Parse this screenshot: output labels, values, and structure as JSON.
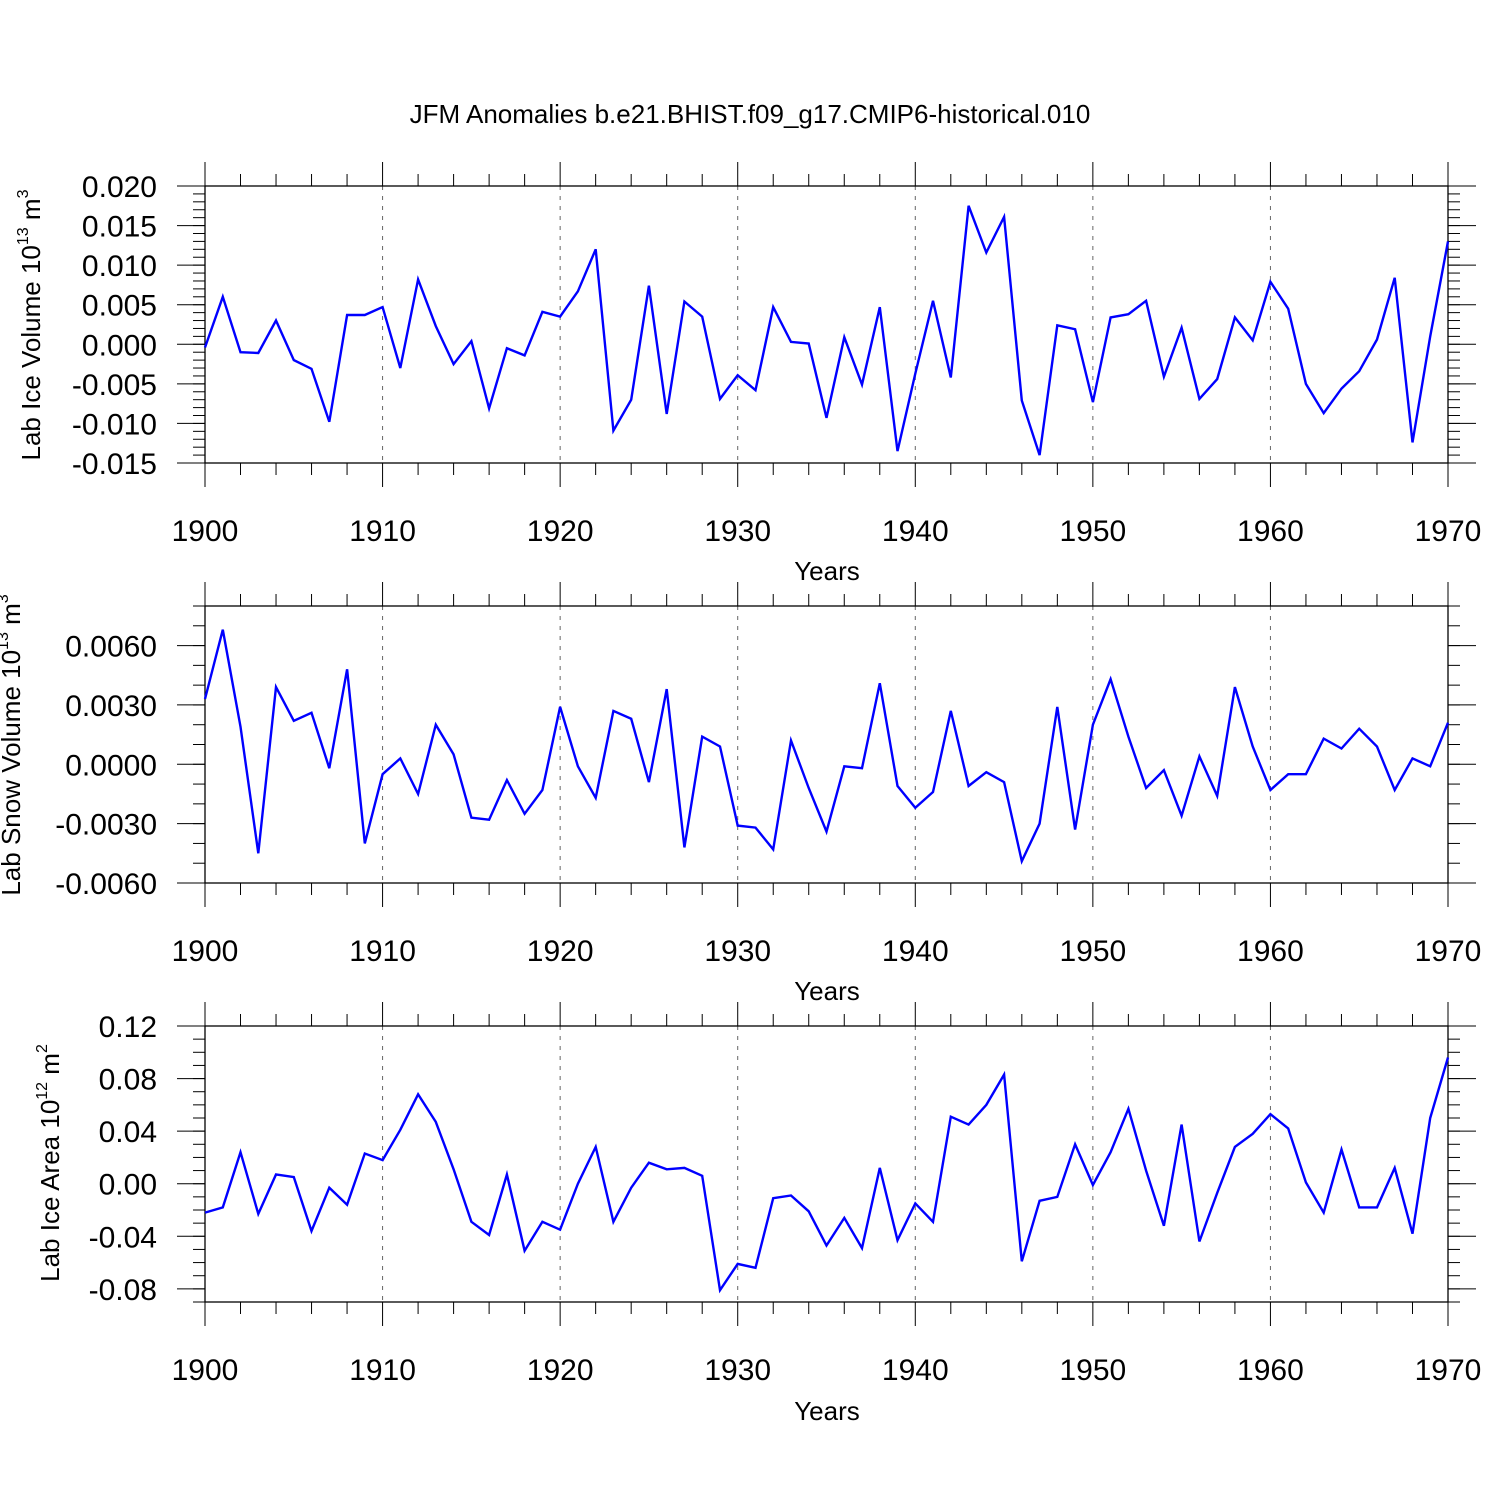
{
  "chart_data": {
    "type": "line",
    "title": "JFM Anomalies b.e21.BHIST.f09_g17.CMIP6-historical.010",
    "series_color": "#0000ff",
    "panels": [
      {
        "ylabel": "Lab Ice Volume 10",
        "ylabel_exp": "13",
        "ylabel_unit": " m",
        "ylabel_unit_exp": "3",
        "xlabel": "Years",
        "xlim": [
          1900,
          1970
        ],
        "ylim": [
          -0.015,
          0.02
        ],
        "xticks": [
          1900,
          1910,
          1920,
          1930,
          1940,
          1950,
          1960,
          1970
        ],
        "xtick_labels": [
          "1900",
          "1910",
          "1920",
          "1930",
          "1940",
          "1950",
          "1960",
          "1970"
        ],
        "yticks": [
          -0.015,
          -0.01,
          -0.005,
          0.0,
          0.005,
          0.01,
          0.015,
          0.02
        ],
        "ytick_labels": [
          "-0.015",
          "-0.010",
          "-0.005",
          "0.000",
          "0.005",
          "0.010",
          "0.015",
          "0.020"
        ],
        "yminor": 0.001,
        "x_start": 1900,
        "values": [
          -0.0004,
          0.006,
          -0.001,
          -0.0011,
          0.003,
          -0.002,
          -0.0031,
          -0.0098,
          0.0037,
          0.0037,
          0.0047,
          -0.003,
          0.0082,
          0.0023,
          -0.0025,
          0.0004,
          -0.0081,
          -0.0005,
          -0.0014,
          0.0041,
          0.0035,
          0.0067,
          0.012,
          -0.0109,
          -0.007,
          0.0074,
          -0.0088,
          0.0054,
          0.0035,
          -0.0069,
          -0.0039,
          -0.0058,
          0.0047,
          0.0003,
          0.0001,
          -0.0093,
          0.0009,
          -0.0051,
          0.0047,
          -0.0135,
          -0.0037,
          0.0055,
          -0.0042,
          0.0175,
          0.0116,
          0.0161,
          -0.0071,
          -0.014,
          0.0024,
          0.0019,
          -0.0073,
          0.0034,
          0.0038,
          0.0055,
          -0.0041,
          0.0021,
          -0.0069,
          -0.0044,
          0.0034,
          0.0005,
          0.0079,
          0.0045,
          -0.005,
          -0.0087,
          -0.0056,
          -0.0034,
          0.0006,
          0.0084,
          -0.0124,
          0.001,
          0.013
        ]
      },
      {
        "ylabel": "Lab Snow Volume 10",
        "ylabel_exp": "13",
        "ylabel_unit": " m",
        "ylabel_unit_exp": "3",
        "xlabel": "Years",
        "xlim": [
          1900,
          1970
        ],
        "ylim": [
          -0.006,
          0.008
        ],
        "xticks": [
          1900,
          1910,
          1920,
          1930,
          1940,
          1950,
          1960,
          1970
        ],
        "xtick_labels": [
          "1900",
          "1910",
          "1920",
          "1930",
          "1940",
          "1950",
          "1960",
          "1970"
        ],
        "yticks": [
          -0.006,
          -0.003,
          0.0,
          0.003,
          0.006
        ],
        "ytick_labels": [
          "-0.0060",
          "-0.0030",
          "0.0000",
          "0.0030",
          "0.0060"
        ],
        "yminor": 0.001,
        "x_start": 1900,
        "values": [
          0.0033,
          0.0068,
          0.0019,
          -0.0045,
          0.0039,
          0.0022,
          0.0026,
          -0.0002,
          0.0048,
          -0.004,
          -0.0005,
          0.0003,
          -0.0015,
          0.002,
          0.0005,
          -0.0027,
          -0.0028,
          -0.0008,
          -0.0025,
          -0.0013,
          0.0029,
          -0.0001,
          -0.0017,
          0.0027,
          0.0023,
          -0.0009,
          0.0038,
          -0.0042,
          0.0014,
          0.0009,
          -0.0031,
          -0.0032,
          -0.0043,
          0.0012,
          -0.0012,
          -0.0034,
          -0.0001,
          -0.0002,
          0.0041,
          -0.0011,
          -0.0022,
          -0.0014,
          0.0027,
          -0.0011,
          -0.0004,
          -0.0009,
          -0.0049,
          -0.003,
          0.0029,
          -0.0033,
          0.002,
          0.0043,
          0.0014,
          -0.0012,
          -0.0003,
          -0.0026,
          0.0004,
          -0.0016,
          0.0039,
          0.0009,
          -0.0013,
          -0.0005,
          -0.0005,
          0.0013,
          0.0008,
          0.0018,
          0.0009,
          -0.0013,
          0.0003,
          -0.0001,
          0.0021
        ]
      },
      {
        "ylabel": "Lab Ice Area 10",
        "ylabel_exp": "12",
        "ylabel_unit": " m",
        "ylabel_unit_exp": "2",
        "xlabel": "Years",
        "xlim": [
          1900,
          1970
        ],
        "ylim": [
          -0.09,
          0.12
        ],
        "xticks": [
          1900,
          1910,
          1920,
          1930,
          1940,
          1950,
          1960,
          1970
        ],
        "xtick_labels": [
          "1900",
          "1910",
          "1920",
          "1930",
          "1940",
          "1950",
          "1960",
          "1970"
        ],
        "yticks": [
          -0.08,
          -0.04,
          0.0,
          0.04,
          0.08,
          0.12
        ],
        "ytick_labels": [
          "-0.08",
          "-0.04",
          "0.00",
          "0.04",
          "0.08",
          "0.12"
        ],
        "yminor": 0.01,
        "x_start": 1900,
        "values": [
          -0.022,
          -0.018,
          0.024,
          -0.023,
          0.007,
          0.005,
          -0.036,
          -0.003,
          -0.016,
          0.023,
          0.018,
          0.041,
          0.068,
          0.047,
          0.011,
          -0.029,
          -0.039,
          0.007,
          -0.051,
          -0.029,
          -0.035,
          0.0,
          0.028,
          -0.029,
          -0.003,
          0.016,
          0.011,
          0.012,
          0.006,
          -0.081,
          -0.061,
          -0.064,
          -0.011,
          -0.009,
          -0.021,
          -0.047,
          -0.026,
          -0.049,
          0.012,
          -0.043,
          -0.015,
          -0.029,
          0.051,
          0.045,
          0.06,
          0.083,
          -0.059,
          -0.013,
          -0.01,
          0.03,
          -0.001,
          0.024,
          0.057,
          0.01,
          -0.032,
          0.045,
          -0.044,
          -0.007,
          0.028,
          0.038,
          0.053,
          0.042,
          0.001,
          -0.022,
          0.026,
          -0.018,
          -0.018,
          0.012,
          -0.038,
          0.05,
          0.096
        ]
      }
    ]
  }
}
